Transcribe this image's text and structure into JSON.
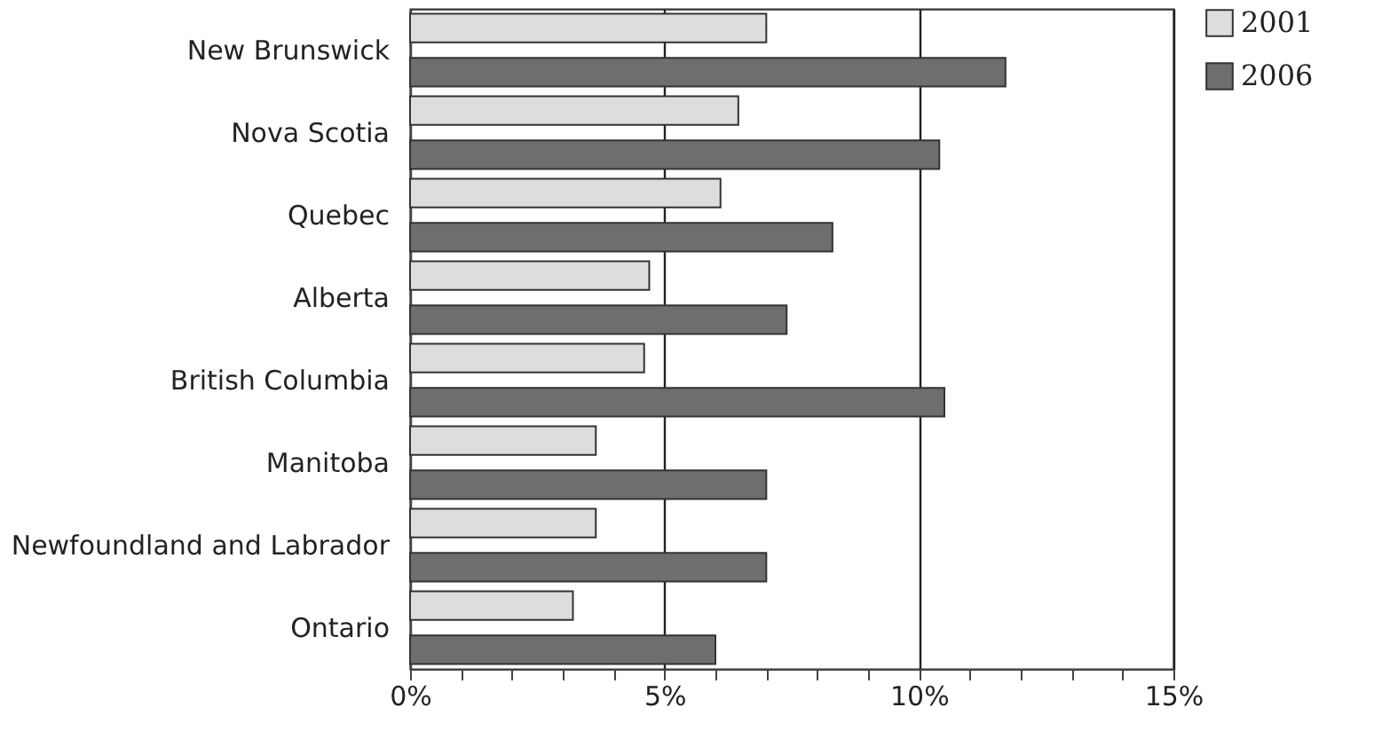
{
  "chart_data": {
    "type": "bar",
    "orientation": "horizontal",
    "categories": [
      "New Brunswick",
      "Nova Scotia",
      "Quebec",
      "Alberta",
      "British Columbia",
      "Manitoba",
      "Newfoundland and Labrador",
      "Ontario"
    ],
    "series": [
      {
        "name": "2001",
        "color": "#dcdddf",
        "values": [
          7.0,
          6.45,
          6.1,
          4.7,
          4.6,
          3.65,
          3.65,
          3.2
        ]
      },
      {
        "name": "2006",
        "color": "#6d6e70",
        "values": [
          11.7,
          10.4,
          8.3,
          7.4,
          10.5,
          7.0,
          7.0,
          6.0
        ]
      }
    ],
    "xlim": [
      0,
      15
    ],
    "xticks": [
      {
        "value": 0,
        "label": "0%"
      },
      {
        "value": 1,
        "label": null
      },
      {
        "value": 2,
        "label": null
      },
      {
        "value": 3,
        "label": null
      },
      {
        "value": 4,
        "label": null
      },
      {
        "value": 5,
        "label": "5%"
      },
      {
        "value": 6,
        "label": null
      },
      {
        "value": 7,
        "label": null
      },
      {
        "value": 8,
        "label": null
      },
      {
        "value": 9,
        "label": null
      },
      {
        "value": 10,
        "label": "10%"
      },
      {
        "value": 11,
        "label": null
      },
      {
        "value": 12,
        "label": null
      },
      {
        "value": 13,
        "label": null
      },
      {
        "value": 14,
        "label": null
      },
      {
        "value": 15,
        "label": "15%"
      }
    ],
    "grid": "x",
    "legend": "right"
  }
}
